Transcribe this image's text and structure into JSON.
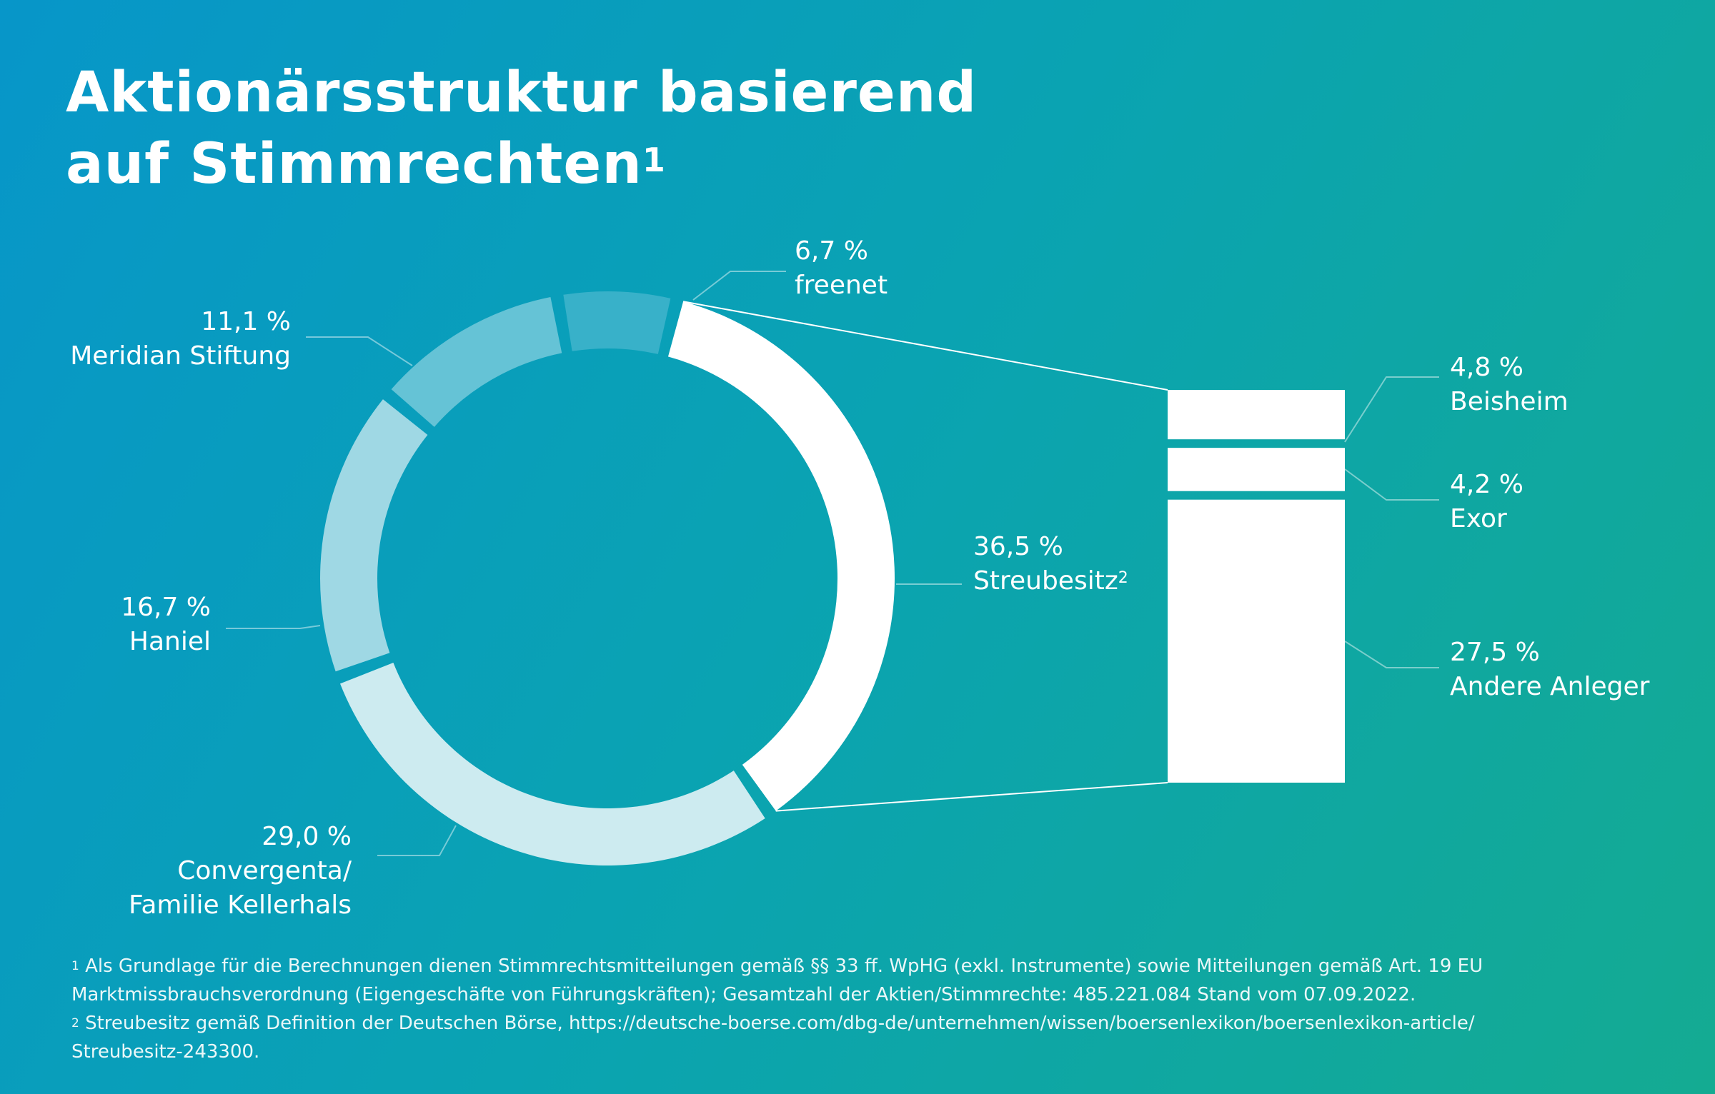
{
  "title": {
    "line1": "Aktionärsstruktur basierend",
    "line2": "auf Stimmrechten",
    "footnote_mark": "1"
  },
  "chart_data": {
    "type": "pie",
    "donut": true,
    "unit": "%",
    "slices": [
      {
        "label": "Streubesitz",
        "label_suffix": "2",
        "value": 36.5,
        "display": "36,5 %",
        "color": "#ffffff"
      },
      {
        "label": "Convergenta/ Familie Kellerhals",
        "label_line1": "Convergenta/",
        "label_line2": "Familie Kellerhals",
        "value": 29.0,
        "display": "29,0 %",
        "color": "#cdebf0"
      },
      {
        "label": "Haniel",
        "value": 16.7,
        "display": "16,7 %",
        "color": "#9fd8e4"
      },
      {
        "label": "Meridian Stiftung",
        "value": 11.1,
        "display": "11,1 %",
        "color": "#65c3d6"
      },
      {
        "label": "freenet",
        "value": 6.7,
        "display": "6,7 %",
        "color": "#38b1c9"
      }
    ],
    "breakdown": {
      "of": "Streubesitz",
      "items": [
        {
          "label": "Beisheim",
          "value": 4.8,
          "display": "4,8 %"
        },
        {
          "label": "Exor",
          "value": 4.2,
          "display": "4,2 %"
        },
        {
          "label": "Andere Anleger",
          "value": 27.5,
          "display": "27,5 %"
        }
      ]
    }
  },
  "footnotes": [
    {
      "mark": "1",
      "line1": "Als Grundlage für die Berechnungen dienen Stimmrechtsmitteilungen gemäß §§ 33 ff. WpHG (exkl. Instrumente) sowie Mitteilungen gemäß Art. 19 EU",
      "line2": "Marktmissbrauchsverordnung (Eigengeschäfte von Führungskräften); Gesamtzahl der Aktien/Stimmrechte: 485.221.084 Stand vom 07.09.2022."
    },
    {
      "mark": "2",
      "line1": "Streubesitz gemäß Definition der Deutschen Börse, https://deutsche-boerse.com/dbg-de/unternehmen/wissen/boersenlexikon/boersenlexikon-article/",
      "line2": "Streubesitz-243300."
    }
  ]
}
